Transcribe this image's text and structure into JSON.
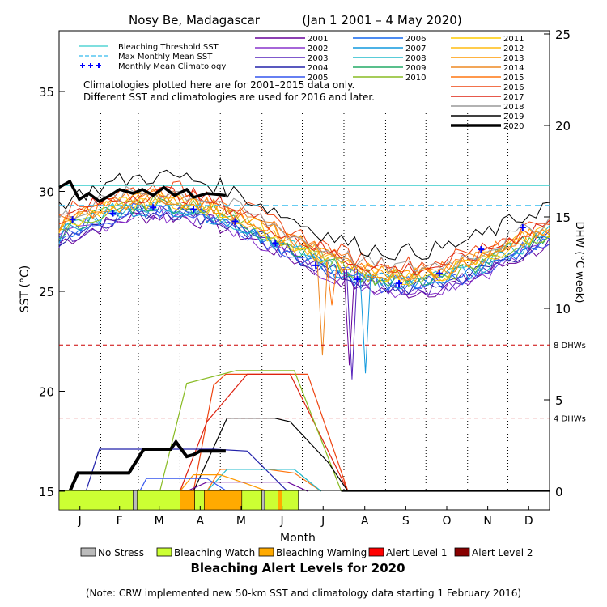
{
  "chart_data": {
    "type": "line",
    "title_left": "Nosy Be, Madagascar",
    "title_right": "(Jan 1 2001 – 4 May 2020)",
    "xlabel": "Month",
    "ylabel_left": "SST (°C)",
    "ylabel_right": "DHW (°C week)",
    "months": [
      "J",
      "F",
      "M",
      "A",
      "M",
      "J",
      "J",
      "A",
      "S",
      "O",
      "N",
      "D"
    ],
    "sst_ticks": [
      "15",
      "20",
      "25",
      "30",
      "35"
    ],
    "dhw_ticks": [
      "0",
      "5",
      "10",
      "15",
      "20",
      "25"
    ],
    "ylim_sst": [
      15,
      39
    ],
    "ylim_dhw": [
      0,
      25
    ],
    "xlim_day": [
      0,
      365
    ],
    "bleaching_threshold_sst": 30.3,
    "max_monthly_mean_sst": 29.3,
    "dhw_thresholds": [
      {
        "value": 4,
        "label": "4 DHWs"
      },
      {
        "value": 8,
        "label": "8 DHWs"
      }
    ],
    "legend_refs": [
      {
        "label": "Bleaching Threshold SST",
        "color": "#33cccc",
        "style": "solid"
      },
      {
        "label": "Max Monthly Mean SST",
        "color": "#33bbee",
        "style": "dashed"
      },
      {
        "label": "Monthly Mean Climatology",
        "color": "#0000ff",
        "style": "plus"
      }
    ],
    "years": [
      {
        "name": "2001",
        "color": "#660099",
        "width": 1.2
      },
      {
        "name": "2002",
        "color": "#8833cc",
        "width": 1.2
      },
      {
        "name": "2003",
        "color": "#5522bb",
        "width": 1.2
      },
      {
        "name": "2004",
        "color": "#2222aa",
        "width": 1.2
      },
      {
        "name": "2005",
        "color": "#3355ee",
        "width": 1.2
      },
      {
        "name": "2006",
        "color": "#1166ee",
        "width": 1.2
      },
      {
        "name": "2007",
        "color": "#1199dd",
        "width": 1.2
      },
      {
        "name": "2008",
        "color": "#22bbcc",
        "width": 1.2
      },
      {
        "name": "2009",
        "color": "#22aa66",
        "width": 1.2
      },
      {
        "name": "2010",
        "color": "#88bb22",
        "width": 1.2
      },
      {
        "name": "2011",
        "color": "#ffcc00",
        "width": 1.2
      },
      {
        "name": "2012",
        "color": "#ffbb11",
        "width": 1.2
      },
      {
        "name": "2013",
        "color": "#ff9900",
        "width": 1.2
      },
      {
        "name": "2014",
        "color": "#ee8822",
        "width": 1.2
      },
      {
        "name": "2015",
        "color": "#ff7711",
        "width": 1.2
      },
      {
        "name": "2016",
        "color": "#ee4411",
        "width": 1.2
      },
      {
        "name": "2017",
        "color": "#dd2211",
        "width": 1.2
      },
      {
        "name": "2018",
        "color": "#999999",
        "width": 1.2
      },
      {
        "name": "2019",
        "color": "#000000",
        "width": 1.2
      },
      {
        "name": "2020",
        "color": "#000000",
        "width": 3.5
      }
    ],
    "note_lines": [
      "Climatologies plotted here are for 2001–2015 data only.",
      "Different SST and climatologies are used for 2016 and later."
    ],
    "monthly_mean_climatology": [
      {
        "day": 10,
        "sst": 28.6
      },
      {
        "day": 40,
        "sst": 28.9
      },
      {
        "day": 70,
        "sst": 29.2
      },
      {
        "day": 100,
        "sst": 29.1
      },
      {
        "day": 131,
        "sst": 28.5
      },
      {
        "day": 161,
        "sst": 27.4
      },
      {
        "day": 191,
        "sst": 26.3
      },
      {
        "day": 222,
        "sst": 25.6
      },
      {
        "day": 253,
        "sst": 25.4
      },
      {
        "day": 283,
        "sst": 25.9
      },
      {
        "day": 314,
        "sst": 27.1
      },
      {
        "day": 345,
        "sst": 28.2
      }
    ],
    "sst_2020": [
      {
        "day": 0,
        "sst": 30.2
      },
      {
        "day": 8,
        "sst": 30.5
      },
      {
        "day": 15,
        "sst": 29.6
      },
      {
        "day": 22,
        "sst": 29.9
      },
      {
        "day": 30,
        "sst": 29.5
      },
      {
        "day": 38,
        "sst": 29.8
      },
      {
        "day": 45,
        "sst": 30.1
      },
      {
        "day": 55,
        "sst": 29.9
      },
      {
        "day": 62,
        "sst": 30.1
      },
      {
        "day": 70,
        "sst": 29.8
      },
      {
        "day": 78,
        "sst": 30.2
      },
      {
        "day": 86,
        "sst": 29.8
      },
      {
        "day": 95,
        "sst": 30.1
      },
      {
        "day": 100,
        "sst": 29.7
      },
      {
        "day": 110,
        "sst": 29.9
      },
      {
        "day": 124,
        "sst": 29.8
      }
    ],
    "dhw_2020": [
      {
        "day": 0,
        "dhw": 0
      },
      {
        "day": 8,
        "dhw": 0
      },
      {
        "day": 14,
        "dhw": 1.0
      },
      {
        "day": 35,
        "dhw": 1.0
      },
      {
        "day": 52,
        "dhw": 1.0
      },
      {
        "day": 63,
        "dhw": 2.3
      },
      {
        "day": 83,
        "dhw": 2.3
      },
      {
        "day": 87,
        "dhw": 2.7
      },
      {
        "day": 95,
        "dhw": 1.9
      },
      {
        "day": 100,
        "dhw": 2.0
      },
      {
        "day": 105,
        "dhw": 2.2
      },
      {
        "day": 124,
        "dhw": 2.2
      }
    ],
    "dhw_envelopes": [
      {
        "name": "2016",
        "points": [
          [
            0,
            0
          ],
          [
            100,
            0
          ],
          [
            115,
            5.8
          ],
          [
            124,
            6.4
          ],
          [
            185,
            6.4
          ],
          [
            215,
            0
          ]
        ]
      },
      {
        "name": "2017",
        "points": [
          [
            0,
            0
          ],
          [
            90,
            0
          ],
          [
            110,
            3.8
          ],
          [
            140,
            6.4
          ],
          [
            172,
            6.4
          ],
          [
            215,
            0
          ]
        ]
      },
      {
        "name": "2010",
        "points": [
          [
            0,
            0
          ],
          [
            75,
            0
          ],
          [
            95,
            5.9
          ],
          [
            132,
            6.6
          ],
          [
            175,
            6.6
          ],
          [
            210,
            0
          ]
        ]
      },
      {
        "name": "2019",
        "points": [
          [
            0,
            0
          ],
          [
            100,
            0
          ],
          [
            125,
            4.0
          ],
          [
            137,
            4.0
          ],
          [
            160,
            4.0
          ],
          [
            172,
            3.8
          ],
          [
            200,
            1.6
          ],
          [
            215,
            0
          ]
        ]
      },
      {
        "name": "2004",
        "points": [
          [
            0,
            0
          ],
          [
            20,
            0
          ],
          [
            30,
            2.3
          ],
          [
            65,
            2.3
          ],
          [
            70,
            2.3
          ],
          [
            115,
            2.3
          ],
          [
            140,
            2.2
          ],
          [
            170,
            0
          ]
        ]
      },
      {
        "name": "2015",
        "points": [
          [
            0,
            0
          ],
          [
            110,
            0
          ],
          [
            120,
            1.2
          ],
          [
            155,
            1.2
          ],
          [
            175,
            1.0
          ],
          [
            195,
            0
          ]
        ]
      },
      {
        "name": "2008",
        "points": [
          [
            0,
            0
          ],
          [
            110,
            0
          ],
          [
            125,
            1.2
          ],
          [
            175,
            1.2
          ],
          [
            195,
            0
          ]
        ]
      },
      {
        "name": "2013",
        "points": [
          [
            0,
            0
          ],
          [
            90,
            0
          ],
          [
            100,
            0.9
          ],
          [
            120,
            0.9
          ],
          [
            140,
            0.4
          ],
          [
            155,
            0
          ]
        ]
      },
      {
        "name": "2005",
        "points": [
          [
            0,
            0
          ],
          [
            60,
            0
          ],
          [
            65,
            0.7
          ],
          [
            110,
            0.7
          ],
          [
            125,
            0
          ]
        ]
      },
      {
        "name": "2001",
        "points": [
          [
            0,
            0
          ],
          [
            95,
            0
          ],
          [
            110,
            0.5
          ],
          [
            170,
            0.5
          ],
          [
            185,
            0
          ]
        ]
      }
    ],
    "alert_bar_label": "Bleaching Alert Levels for 2020",
    "alert_levels": [
      {
        "label": "No Stress",
        "color": "#bbbbbb"
      },
      {
        "label": "Bleaching Watch",
        "color": "#ccff33"
      },
      {
        "label": "Bleaching Warning",
        "color": "#ffaa00"
      },
      {
        "label": "Alert Level 1",
        "color": "#ff0000"
      },
      {
        "label": "Alert Level 2",
        "color": "#880000"
      }
    ],
    "alert_bar_2020": [
      {
        "start": 0,
        "end": 55,
        "level": "Bleaching Watch"
      },
      {
        "start": 55,
        "end": 58,
        "level": "No Stress"
      },
      {
        "start": 58,
        "end": 90,
        "level": "Bleaching Watch"
      },
      {
        "start": 90,
        "end": 101,
        "level": "Bleaching Warning"
      },
      {
        "start": 101,
        "end": 108,
        "level": "Bleaching Watch"
      },
      {
        "start": 108,
        "end": 136,
        "level": "Bleaching Warning"
      },
      {
        "start": 136,
        "end": 151,
        "level": "Bleaching Watch"
      },
      {
        "start": 151,
        "end": 153,
        "level": "No Stress"
      },
      {
        "start": 153,
        "end": 163,
        "level": "Bleaching Watch"
      },
      {
        "start": 163,
        "end": 166,
        "level": "Bleaching Warning"
      },
      {
        "start": 166,
        "end": 178,
        "level": "Bleaching Watch"
      }
    ],
    "footnote": "(Note: CRW implemented new 50-km SST and climatology data starting 1 February 2016)"
  }
}
